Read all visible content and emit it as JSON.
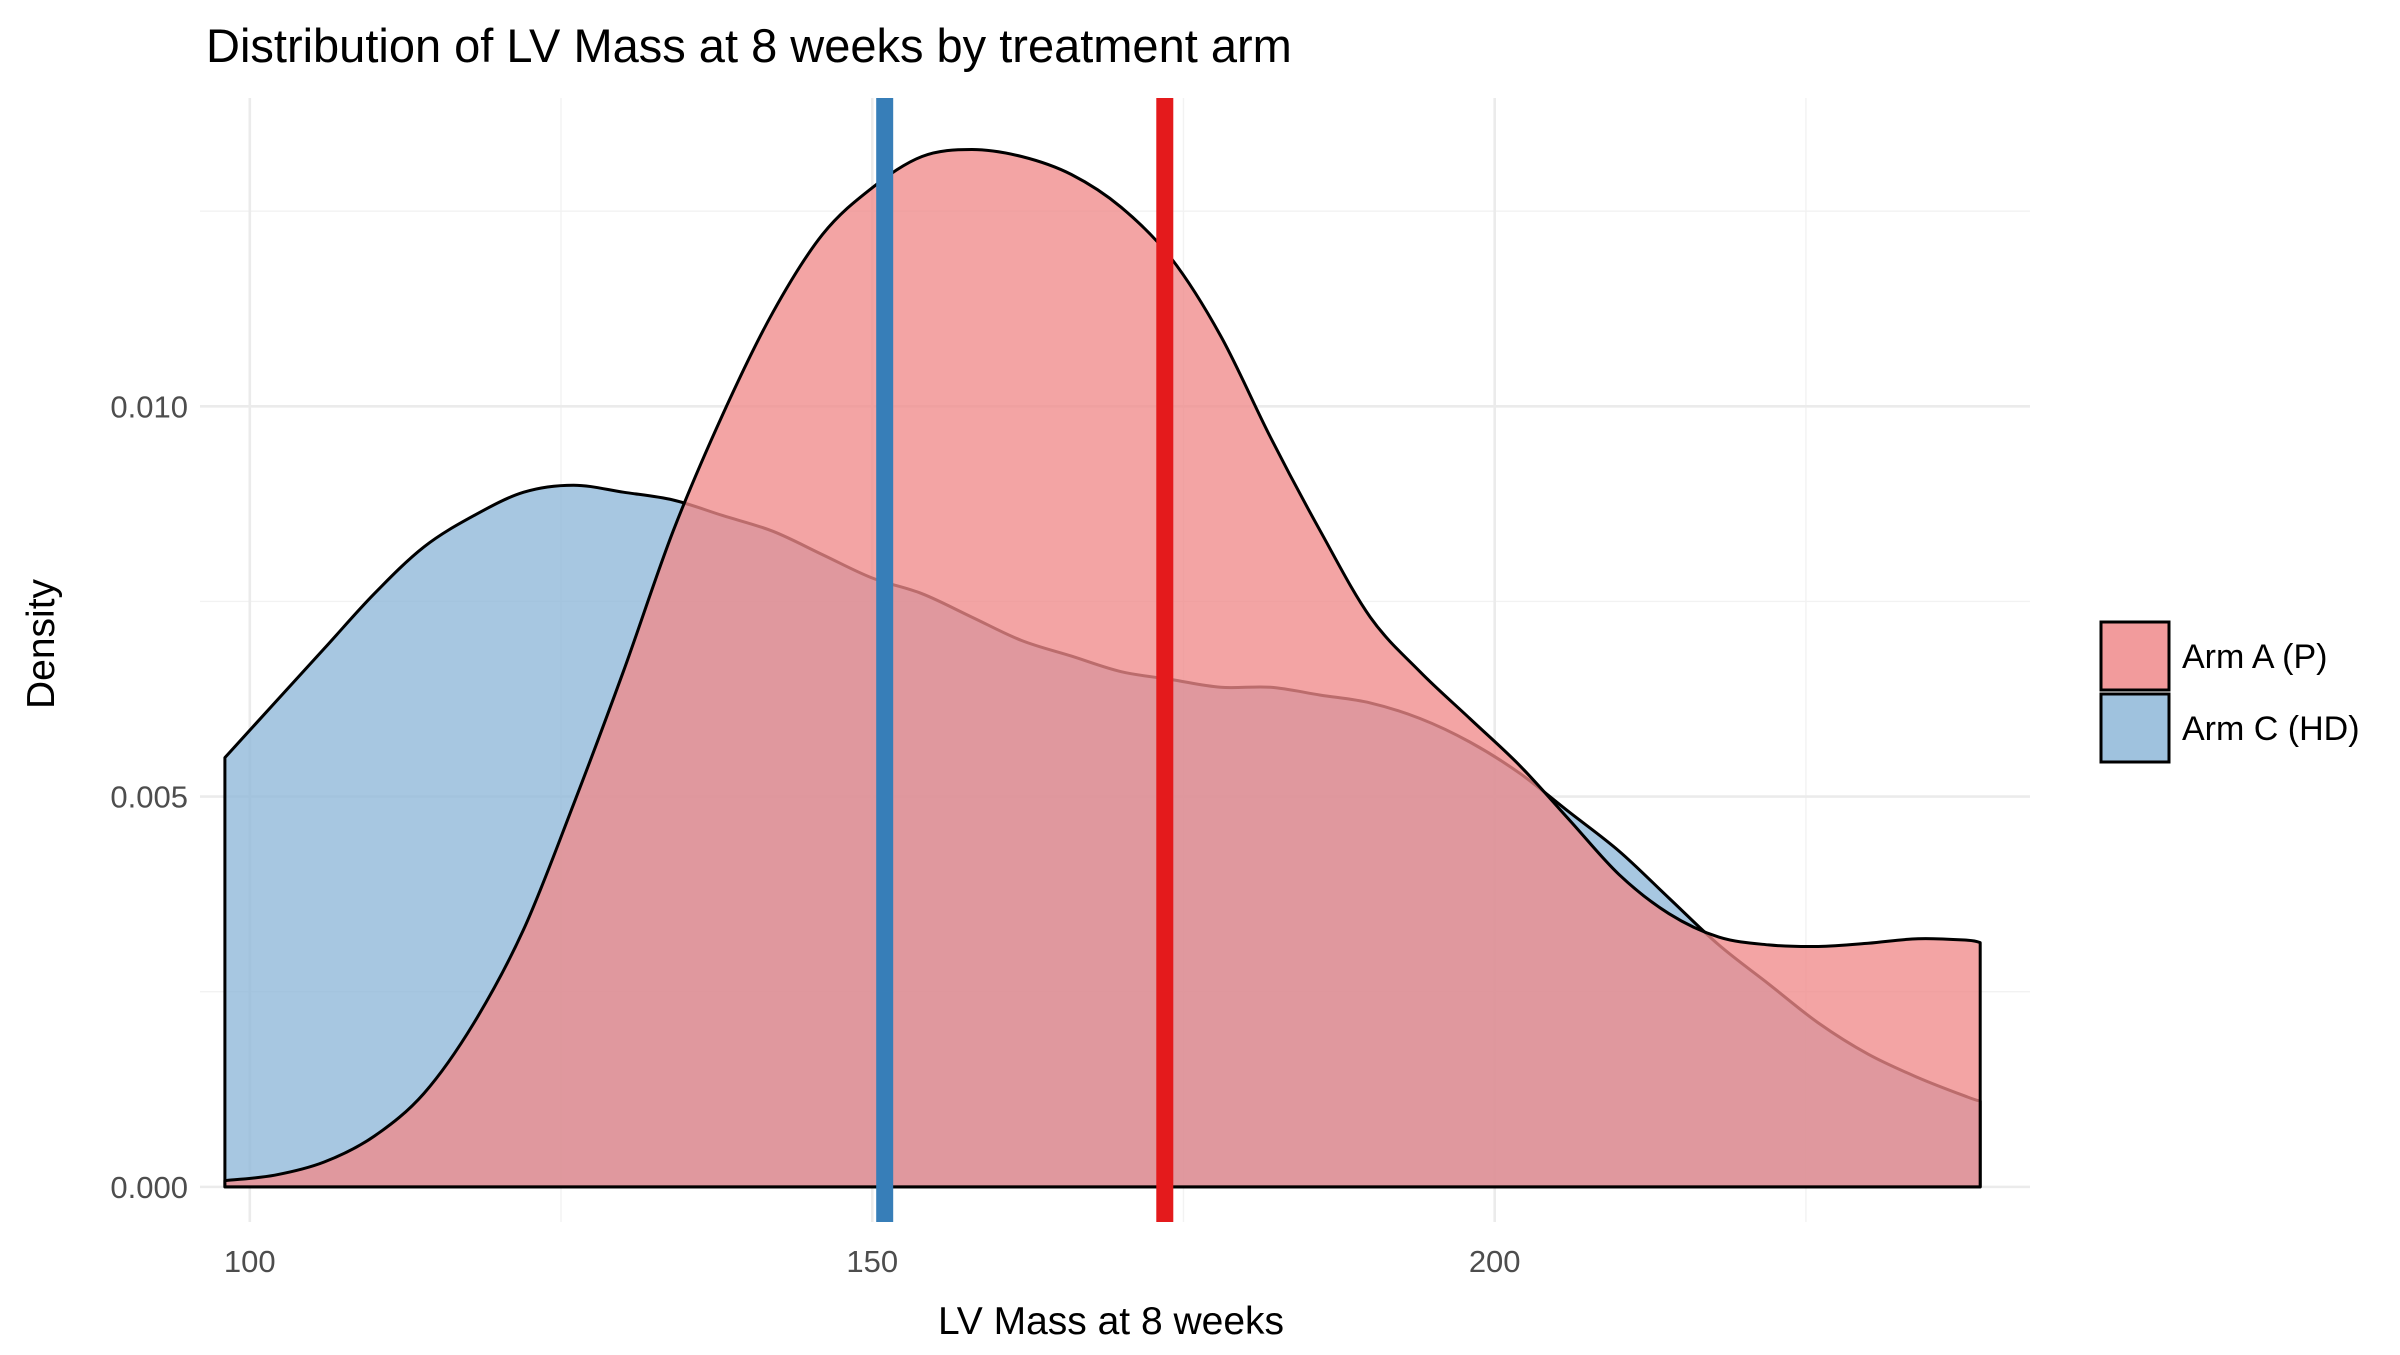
{
  "chart_data": {
    "type": "area",
    "title": "Distribution of LV Mass at 8 weeks by treatment arm",
    "xlabel": "LV Mass at 8 weeks",
    "ylabel": "Density",
    "xlim": [
      96,
      243
    ],
    "ylim": [
      -0.00045,
      0.01395
    ],
    "x_ticks": [
      {
        "value": 100,
        "label": "100"
      },
      {
        "value": 150,
        "label": "150"
      },
      {
        "value": 200,
        "label": "200"
      }
    ],
    "y_ticks": [
      {
        "value": 0.0,
        "label": "0.000"
      },
      {
        "value": 0.005,
        "label": "0.005"
      },
      {
        "value": 0.01,
        "label": "0.010"
      }
    ],
    "grid": true,
    "legend_position": "right",
    "series": [
      {
        "name": "Arm A (P)",
        "color": "#e41a1c",
        "fill": "#f08a8b",
        "mean": 173.5,
        "x": [
          98,
          102,
          106,
          110,
          114,
          118,
          122,
          126,
          130,
          134,
          138,
          142,
          146,
          150,
          154,
          158,
          162,
          166,
          170,
          174,
          178,
          182,
          186,
          190,
          194,
          198,
          202,
          206,
          210,
          214,
          218,
          222,
          226,
          230,
          234,
          238,
          239
        ],
        "y": [
          8e-05,
          0.00015,
          0.00032,
          0.00065,
          0.0012,
          0.0021,
          0.0033,
          0.0049,
          0.0066,
          0.0084,
          0.0099,
          0.0112,
          0.0122,
          0.0128,
          0.0132,
          0.01329,
          0.0132,
          0.01297,
          0.01255,
          0.0119,
          0.0109,
          0.0096,
          0.0084,
          0.0073,
          0.0066,
          0.006,
          0.0054,
          0.0047,
          0.004,
          0.0035,
          0.0032,
          0.0031,
          0.00308,
          0.00312,
          0.00318,
          0.00316,
          0.00313
        ]
      },
      {
        "name": "Arm C (HD)",
        "color": "#377eb8",
        "fill": "#8eb7d8",
        "mean": 151.0,
        "x": [
          98,
          102,
          106,
          110,
          114,
          118,
          122,
          126,
          130,
          134,
          138,
          142,
          146,
          150,
          154,
          158,
          162,
          166,
          170,
          174,
          178,
          182,
          186,
          190,
          194,
          198,
          202,
          206,
          210,
          214,
          218,
          222,
          226,
          230,
          234,
          238,
          239
        ],
        "y": [
          0.0055,
          0.0062,
          0.0069,
          0.0076,
          0.0082,
          0.0086,
          0.0089,
          0.00899,
          0.0089,
          0.0088,
          0.0086,
          0.0084,
          0.0081,
          0.0078,
          0.0076,
          0.0073,
          0.007,
          0.0068,
          0.0066,
          0.0065,
          0.0064,
          0.0064,
          0.0063,
          0.0062,
          0.006,
          0.0057,
          0.0053,
          0.0048,
          0.0043,
          0.0037,
          0.0031,
          0.0026,
          0.0021,
          0.0017,
          0.0014,
          0.00115,
          0.0011
        ]
      }
    ]
  }
}
